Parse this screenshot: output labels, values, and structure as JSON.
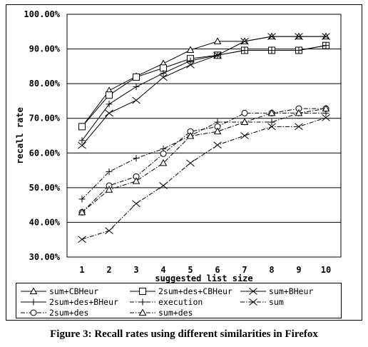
{
  "chart_data": {
    "type": "line",
    "title": "",
    "xlabel": "suggested list size",
    "ylabel": "recall rate",
    "categories": [
      "1",
      "2",
      "3",
      "4",
      "5",
      "6",
      "7",
      "8",
      "9",
      "10"
    ],
    "y_tick_labels": [
      "30.00%",
      "40.00%",
      "50.00%",
      "60.00%",
      "70.00%",
      "80.00%",
      "90.00%",
      "100.00%"
    ],
    "ylim": [
      30,
      100
    ],
    "grid": "horizontal",
    "legend_position": "bottom",
    "series": [
      {
        "name": "sum+CBHeur",
        "marker": "triangle",
        "style": "solid",
        "values": [
          67.6,
          78.0,
          82.1,
          85.8,
          89.7,
          92.2,
          92.2,
          93.6,
          93.6,
          93.6
        ]
      },
      {
        "name": "2sum+des+CBHeur",
        "marker": "square",
        "style": "solid",
        "values": [
          67.6,
          76.7,
          81.9,
          84.5,
          87.2,
          88.2,
          89.6,
          89.6,
          89.6,
          91.0
        ]
      },
      {
        "name": "sum+BHeur",
        "marker": "x",
        "style": "solid",
        "values": [
          62.2,
          71.5,
          75.2,
          81.8,
          85.4,
          88.2,
          92.2,
          93.6,
          93.6,
          93.6
        ]
      },
      {
        "name": "2sum+des+BHeur",
        "marker": "plus",
        "style": "solid",
        "values": [
          63.6,
          74.1,
          79.1,
          83.0,
          86.6,
          88.2,
          89.6,
          89.6,
          89.6,
          91.0
        ]
      },
      {
        "name": "execution",
        "marker": "plus",
        "style": "dashdot",
        "values": [
          46.7,
          54.6,
          58.5,
          61.2,
          65.0,
          68.9,
          68.9,
          68.9,
          71.5,
          71.5
        ]
      },
      {
        "name": "sum",
        "marker": "x",
        "style": "dashdot",
        "values": [
          35.1,
          37.6,
          45.4,
          50.6,
          57.1,
          62.3,
          65.0,
          67.6,
          67.6,
          70.2
        ]
      },
      {
        "name": "2sum+des",
        "marker": "circle",
        "style": "dashdot",
        "values": [
          42.9,
          50.6,
          53.2,
          59.8,
          66.2,
          67.6,
          71.5,
          71.5,
          72.8,
          72.8
        ]
      },
      {
        "name": "sum+des",
        "marker": "triangle",
        "style": "dashdot",
        "values": [
          42.9,
          49.4,
          51.9,
          57.1,
          64.9,
          66.2,
          68.9,
          71.5,
          71.5,
          72.8
        ]
      }
    ]
  },
  "caption": "Figure 3: Recall rates using different similarities in Firefox"
}
